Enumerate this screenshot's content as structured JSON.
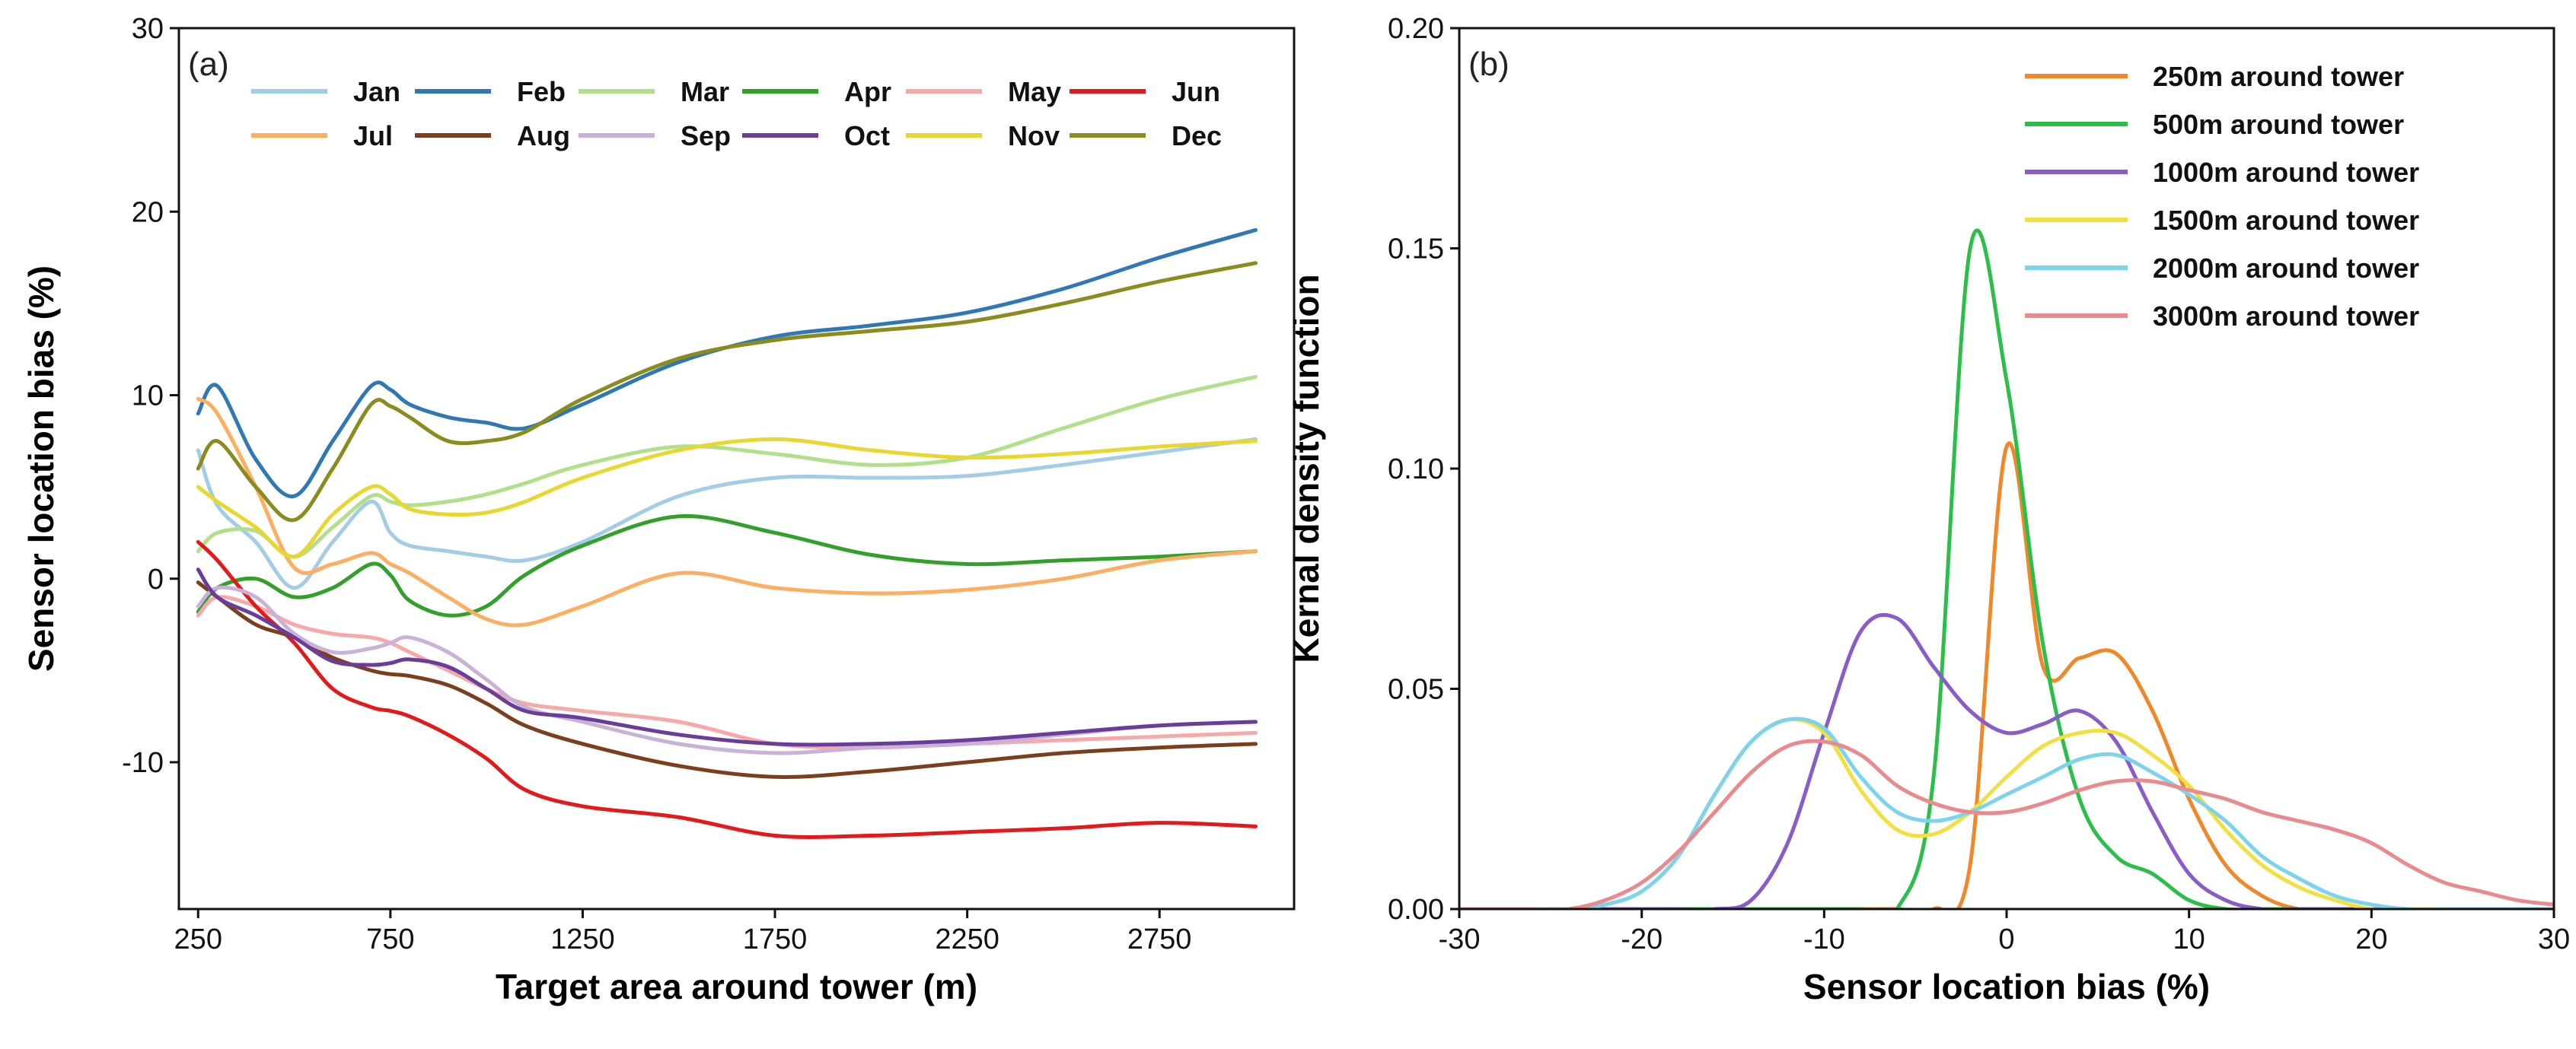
{
  "chart_data": [
    {
      "type": "line",
      "panel_label": "(a)",
      "xlabel": "Target area around tower (m)",
      "ylabel": "Sensor location bias (%)",
      "xlim": [
        200,
        3100
      ],
      "ylim": [
        -18,
        30
      ],
      "xticks": [
        250,
        750,
        1250,
        1750,
        2250,
        2750
      ],
      "xtick_labels": [
        "250",
        "750",
        "1250",
        "1750",
        "2250",
        "2750"
      ],
      "yticks": [
        -10,
        0,
        10,
        20,
        30
      ],
      "ytick_labels": [
        "-10",
        "0",
        "10",
        "20",
        "30"
      ],
      "legend_position": "top-left",
      "x": [
        250,
        300,
        400,
        500,
        600,
        700,
        750,
        800,
        900,
        1000,
        1100,
        1250,
        1500,
        1750,
        2000,
        2250,
        2500,
        2750,
        3000
      ],
      "series": [
        {
          "name": "Jan",
          "color": "#a3cde6",
          "values": [
            7.0,
            4.0,
            2.0,
            -0.5,
            2.0,
            4.2,
            2.5,
            1.8,
            1.5,
            1.2,
            1.0,
            2.0,
            4.5,
            5.5,
            5.5,
            5.6,
            6.2,
            6.9,
            7.6
          ]
        },
        {
          "name": "Feb",
          "color": "#2f78b4",
          "values": [
            9.0,
            10.5,
            6.5,
            4.5,
            7.5,
            10.5,
            10.3,
            9.5,
            8.8,
            8.5,
            8.2,
            9.5,
            11.8,
            13.2,
            13.8,
            14.5,
            15.8,
            17.5,
            19.0
          ]
        },
        {
          "name": "Mar",
          "color": "#b2df8a",
          "values": [
            1.5,
            2.5,
            2.6,
            1.2,
            2.8,
            4.5,
            4.2,
            4.0,
            4.2,
            4.6,
            5.2,
            6.2,
            7.2,
            6.8,
            6.2,
            6.6,
            8.2,
            9.8,
            11.0
          ]
        },
        {
          "name": "Apr",
          "color": "#33a02c",
          "values": [
            -1.8,
            -0.5,
            0.0,
            -1.0,
            -0.5,
            0.8,
            0.2,
            -1.2,
            -2.0,
            -1.5,
            0.2,
            1.8,
            3.4,
            2.5,
            1.3,
            0.8,
            1.0,
            1.2,
            1.5
          ]
        },
        {
          "name": "May",
          "color": "#f7a8a8",
          "values": [
            -2.0,
            -1.0,
            -1.5,
            -2.5,
            -3.0,
            -3.2,
            -3.5,
            -4.0,
            -5.0,
            -6.0,
            -6.8,
            -7.2,
            -7.8,
            -9.0,
            -9.2,
            -9.0,
            -8.8,
            -8.6,
            -8.4
          ]
        },
        {
          "name": "Jun",
          "color": "#e31a1c",
          "values": [
            2.0,
            1.0,
            -1.5,
            -3.5,
            -6.0,
            -7.0,
            -7.2,
            -7.5,
            -8.5,
            -9.8,
            -11.5,
            -12.4,
            -13.0,
            -14.0,
            -14.0,
            -13.8,
            -13.6,
            -13.3,
            -13.5
          ]
        },
        {
          "name": "Jul",
          "color": "#fdae61",
          "values": [
            9.8,
            9.0,
            5.0,
            0.6,
            0.8,
            1.4,
            0.8,
            0.3,
            -1.0,
            -2.2,
            -2.5,
            -1.5,
            0.3,
            -0.5,
            -0.8,
            -0.6,
            0.0,
            1.0,
            1.5
          ]
        },
        {
          "name": "Aug",
          "color": "#7b3f1e",
          "values": [
            -0.2,
            -1.0,
            -2.5,
            -3.2,
            -4.3,
            -5.0,
            -5.2,
            -5.3,
            -5.8,
            -6.8,
            -8.0,
            -9.0,
            -10.2,
            -10.8,
            -10.5,
            -10.0,
            -9.5,
            -9.2,
            -9.0
          ]
        },
        {
          "name": "Sep",
          "color": "#cab2d6",
          "values": [
            -1.5,
            -0.5,
            -1.0,
            -3.0,
            -4.0,
            -3.8,
            -3.5,
            -3.2,
            -4.0,
            -5.5,
            -7.0,
            -7.8,
            -9.0,
            -9.5,
            -9.2,
            -9.0,
            -8.5,
            -8.0,
            -7.8
          ]
        },
        {
          "name": "Oct",
          "color": "#6a3d9a",
          "values": [
            0.5,
            -1.0,
            -2.0,
            -3.2,
            -4.5,
            -4.7,
            -4.6,
            -4.4,
            -4.8,
            -6.0,
            -7.2,
            -7.6,
            -8.5,
            -9.0,
            -9.0,
            -8.8,
            -8.4,
            -8.0,
            -7.8
          ]
        },
        {
          "name": "Nov",
          "color": "#e8d72e",
          "values": [
            5.0,
            4.2,
            2.8,
            1.2,
            3.5,
            5.0,
            4.6,
            3.8,
            3.5,
            3.6,
            4.2,
            5.5,
            7.0,
            7.6,
            7.0,
            6.6,
            6.8,
            7.2,
            7.5
          ]
        },
        {
          "name": "Dec",
          "color": "#8b8b1e",
          "values": [
            6.0,
            7.5,
            5.0,
            3.2,
            6.0,
            9.5,
            9.4,
            8.8,
            7.5,
            7.5,
            8.0,
            9.8,
            12.0,
            13.0,
            13.5,
            14.0,
            15.0,
            16.2,
            17.2
          ]
        }
      ]
    },
    {
      "type": "line",
      "panel_label": "(b)",
      "xlabel": "Sensor location bias (%)",
      "ylabel": "Kernal density function",
      "xlim": [
        -30,
        30
      ],
      "ylim": [
        0,
        0.2
      ],
      "xticks": [
        -30,
        -20,
        -10,
        0,
        10,
        20,
        30
      ],
      "xtick_labels": [
        "-30",
        "-20",
        "-10",
        "0",
        "10",
        "20",
        "30"
      ],
      "yticks": [
        0,
        0.05,
        0.1,
        0.15,
        0.2
      ],
      "ytick_labels": [
        "0.00",
        "0.05",
        "0.10",
        "0.15",
        "0.20"
      ],
      "legend_position": "top-right",
      "x": [
        -30,
        -28,
        -26,
        -24,
        -22,
        -20,
        -18,
        -16,
        -14,
        -12,
        -10,
        -8,
        -6,
        -4,
        -2,
        0,
        2,
        4,
        6,
        8,
        10,
        12,
        14,
        16,
        18,
        20,
        22,
        24,
        26,
        28,
        30
      ],
      "series": [
        {
          "name": "250m around tower",
          "color": "#f0882a",
          "values": [
            0,
            0,
            0,
            0,
            0,
            0,
            0,
            0,
            0,
            0,
            0,
            0,
            0,
            0,
            0.01,
            0.105,
            0.055,
            0.057,
            0.058,
            0.045,
            0.025,
            0.01,
            0.003,
            0,
            0,
            0,
            0,
            0,
            0,
            0,
            0
          ]
        },
        {
          "name": "500m around tower",
          "color": "#2bbf4a",
          "values": [
            0,
            0,
            0,
            0,
            0,
            0,
            0,
            0,
            0,
            0,
            0,
            0,
            0,
            0.03,
            0.15,
            0.12,
            0.06,
            0.025,
            0.012,
            0.008,
            0.002,
            0,
            0,
            0,
            0,
            0,
            0,
            0,
            0,
            0,
            0
          ]
        },
        {
          "name": "1000m around tower",
          "color": "#8a5cc8",
          "values": [
            0,
            0,
            0,
            0,
            0,
            0,
            0,
            0,
            0.002,
            0.015,
            0.04,
            0.063,
            0.066,
            0.055,
            0.045,
            0.04,
            0.042,
            0.045,
            0.038,
            0.022,
            0.008,
            0.002,
            0,
            0,
            0,
            0,
            0,
            0,
            0,
            0,
            0
          ]
        },
        {
          "name": "1500m around tower",
          "color": "#f2e040",
          "values": [
            0,
            0,
            0,
            0,
            0.001,
            0.004,
            0.012,
            0.026,
            0.038,
            0.043,
            0.04,
            0.027,
            0.018,
            0.017,
            0.022,
            0.03,
            0.037,
            0.04,
            0.04,
            0.035,
            0.028,
            0.018,
            0.01,
            0.005,
            0.002,
            0,
            0,
            0,
            0,
            0,
            0
          ]
        },
        {
          "name": "2000m around tower",
          "color": "#7ed3ec",
          "values": [
            0,
            0,
            0,
            0,
            0.001,
            0.004,
            0.012,
            0.026,
            0.038,
            0.043,
            0.041,
            0.03,
            0.022,
            0.02,
            0.022,
            0.026,
            0.03,
            0.034,
            0.035,
            0.031,
            0.026,
            0.02,
            0.012,
            0.007,
            0.003,
            0.001,
            0,
            0,
            0,
            0,
            0
          ]
        },
        {
          "name": "3000m around tower",
          "color": "#e98a8e",
          "values": [
            0,
            0,
            0,
            0,
            0.002,
            0.006,
            0.013,
            0.022,
            0.031,
            0.037,
            0.038,
            0.035,
            0.028,
            0.024,
            0.022,
            0.022,
            0.024,
            0.027,
            0.029,
            0.029,
            0.027,
            0.025,
            0.022,
            0.02,
            0.018,
            0.015,
            0.01,
            0.006,
            0.004,
            0.002,
            0.001
          ]
        }
      ]
    }
  ]
}
